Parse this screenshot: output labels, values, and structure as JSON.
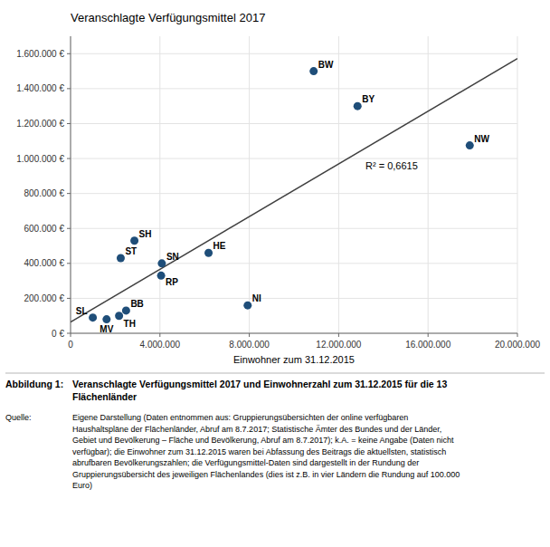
{
  "chart_data": {
    "type": "scatter",
    "title": "Veranschlagte Verfügungsmittel 2017",
    "xlabel": "Einwohner zum 31.12.2015",
    "labels": [
      "BW",
      "BY",
      "NW",
      "HE",
      "NI",
      "SN",
      "RP",
      "SH",
      "ST",
      "BB",
      "TH",
      "MV",
      "SL"
    ],
    "x": [
      10879618,
      12843514,
      17865516,
      6176172,
      7926599,
      4084851,
      4052803,
      2858714,
      2245470,
      2484826,
      2170714,
      1612362,
      995597
    ],
    "values": [
      1500000,
      1300000,
      1075000,
      460000,
      160000,
      400000,
      330000,
      530000,
      430000,
      130000,
      100000,
      80000,
      90000
    ],
    "color": "#1F4E79",
    "trend_line": {
      "x": [
        0,
        20000000
      ],
      "y": [
        64730,
        1572278
      ],
      "color": "#404040"
    },
    "annotations": [
      "R² = 0,6615"
    ],
    "xlim": [
      0,
      20000000
    ],
    "ylim": [
      0,
      1700000
    ],
    "xticks": [
      0,
      {
        "value": 4000000,
        "label": "4.000.000"
      },
      {
        "value": 8000000,
        "label": "8.000.000"
      },
      {
        "value": 12000000,
        "label": "12.000.000"
      },
      {
        "value": 16000000,
        "label": "16.000.000"
      },
      {
        "value": 20000000,
        "label": "20.000.000"
      }
    ],
    "yticks": [
      {
        "value": 0,
        "label": "0 €"
      },
      {
        "value": 200000,
        "label": "200.000 €"
      },
      {
        "value": 400000,
        "label": "400.000 €"
      },
      {
        "value": 600000,
        "label": "600.000 €"
      },
      {
        "value": 800000,
        "label": "800.000 €"
      },
      {
        "value": 1000000,
        "label": "1.000.000 €"
      },
      {
        "value": 1200000,
        "label": "1.200.000 €"
      },
      {
        "value": 1400000,
        "label": "1.400.000 €"
      },
      {
        "value": 1600000,
        "label": "1.600.000 €"
      }
    ],
    "grid": true,
    "caption_label": "Abbildung 1:",
    "caption_text": "Veranschlagte Verfügungsmittel 2017 und Einwohnerzahl zum 31.12.2015 für die 13\nFlächenländer",
    "source_label": "Quelle:",
    "source_text": "Eigene Darstellung (Daten entnommen aus: Gruppierungsübersichten der online verfügbaren\nHaushaltspläne der Flächenländer, Abruf am 8.7.2017;  Statistische Ämter des Bundes und der Länder,\nGebiet und Bevölkerung – Fläche und Bevölkerung, Abruf am 8.7.2017); k.A. = keine Angabe (Daten nicht\nverfügbar); die Einwohner zum 31.12.2015 waren bei Abfassung des Beitrags die aktuellsten, statistisch\nabrufbaren Bevölkerungszahlen; die Verfügungsmittel-Daten sind dargestellt in der Rundung der\nGruppierungsübersicht des jeweiligen Flächenlandes (dies ist z.B. in vier Ländern die Rundung auf 100.000\nEuro)"
  }
}
